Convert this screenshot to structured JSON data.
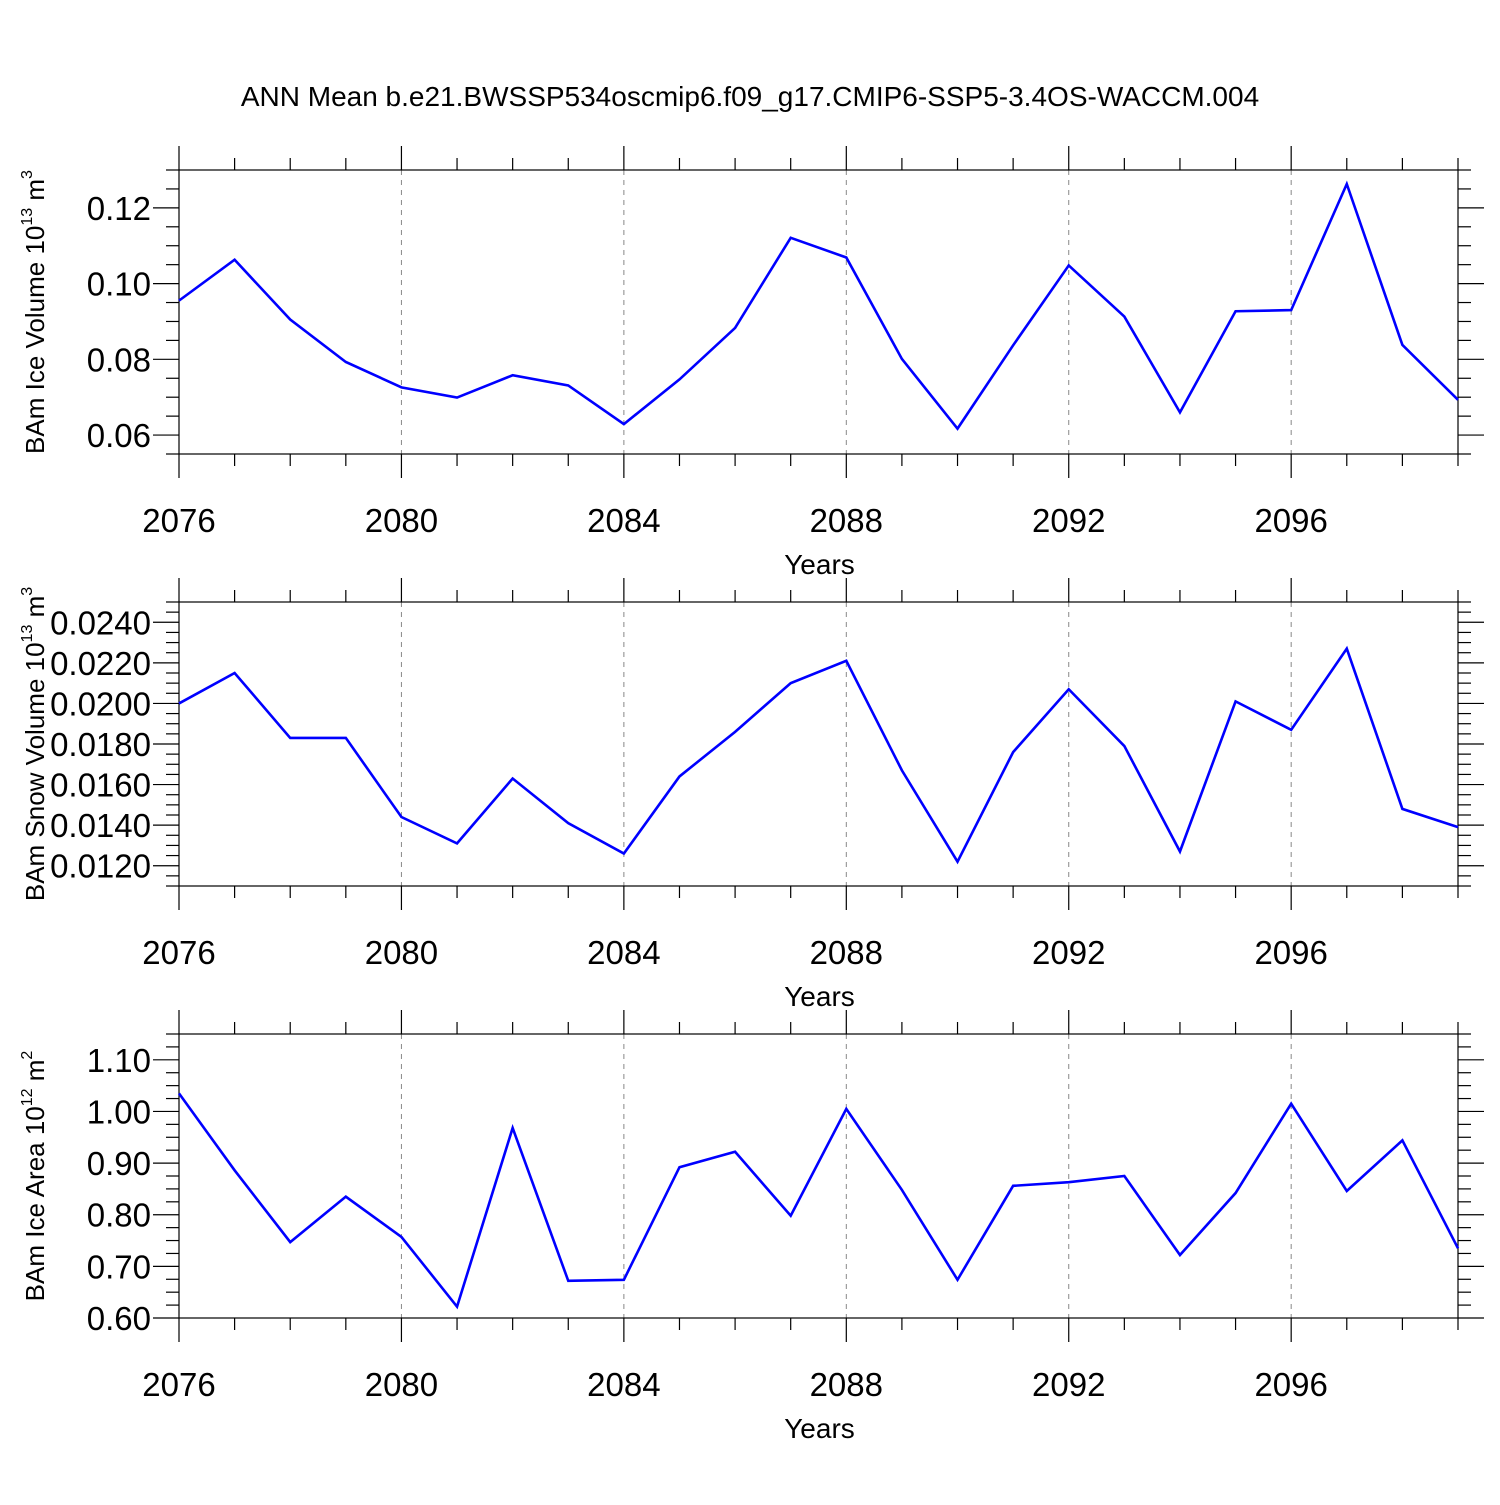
{
  "title": "ANN Mean b.e21.BWSSP534oscmip6.f09_g17.CMIP6-SSP5-3.4OS-WACCM.004",
  "colors": {
    "line": "#0000ff",
    "axis": "#000000",
    "grid": "#888888"
  },
  "chart_data": [
    {
      "type": "line",
      "ylabel_main": "BAm Ice Volume 10",
      "ylabel_exp": "13",
      "ylabel_unit": " m",
      "ylabel_unit_exp": "3",
      "xlabel": "Years",
      "xlim": [
        2076,
        2099
      ],
      "ylim": [
        0.055,
        0.13
      ],
      "xticks": [
        2076,
        2080,
        2084,
        2088,
        2092,
        2096
      ],
      "xtick_labels": [
        "2076",
        "2080",
        "2084",
        "2088",
        "2092",
        "2096"
      ],
      "yticks": [
        0.06,
        0.08,
        0.1,
        0.12
      ],
      "ytick_labels": [
        "0.06",
        "0.08",
        "0.10",
        "0.12"
      ],
      "x": [
        2076,
        2077,
        2078,
        2079,
        2080,
        2081,
        2082,
        2083,
        2084,
        2085,
        2086,
        2087,
        2088,
        2089,
        2090,
        2091,
        2092,
        2093,
        2094,
        2095,
        2096,
        2097,
        2098,
        2099
      ],
      "values": [
        0.0955,
        0.1063,
        0.0905,
        0.0793,
        0.0726,
        0.0699,
        0.0758,
        0.0731,
        0.0629,
        0.0747,
        0.0883,
        0.1121,
        0.1069,
        0.0801,
        0.0617,
        0.0837,
        0.1048,
        0.0913,
        0.066,
        0.0927,
        0.093,
        0.1263,
        0.0838,
        0.0693
      ]
    },
    {
      "type": "line",
      "ylabel_main": "BAm Snow Volume 10",
      "ylabel_exp": "13",
      "ylabel_unit": " m",
      "ylabel_unit_exp": "3",
      "xlabel": "Years",
      "xlim": [
        2076,
        2099
      ],
      "ylim": [
        0.011,
        0.025
      ],
      "xticks": [
        2076,
        2080,
        2084,
        2088,
        2092,
        2096
      ],
      "xtick_labels": [
        "2076",
        "2080",
        "2084",
        "2088",
        "2092",
        "2096"
      ],
      "yticks": [
        0.012,
        0.014,
        0.016,
        0.018,
        0.02,
        0.022,
        0.024
      ],
      "ytick_labels": [
        "0.0120",
        "0.0140",
        "0.0160",
        "0.0180",
        "0.0200",
        "0.0220",
        "0.0240"
      ],
      "x": [
        2076,
        2077,
        2078,
        2079,
        2080,
        2081,
        2082,
        2083,
        2084,
        2085,
        2086,
        2087,
        2088,
        2089,
        2090,
        2091,
        2092,
        2093,
        2094,
        2095,
        2096,
        2097,
        2098,
        2099
      ],
      "values": [
        0.02,
        0.0215,
        0.0183,
        0.0183,
        0.0144,
        0.0131,
        0.0163,
        0.0141,
        0.0126,
        0.0164,
        0.0186,
        0.021,
        0.0221,
        0.0167,
        0.0122,
        0.0176,
        0.0207,
        0.0179,
        0.0127,
        0.0201,
        0.0187,
        0.0227,
        0.0148,
        0.0139
      ]
    },
    {
      "type": "line",
      "ylabel_main": "BAm Ice Area 10",
      "ylabel_exp": "12",
      "ylabel_unit": " m",
      "ylabel_unit_exp": "2",
      "xlabel": "Years",
      "xlim": [
        2076,
        2099
      ],
      "ylim": [
        0.6,
        1.15
      ],
      "xticks": [
        2076,
        2080,
        2084,
        2088,
        2092,
        2096
      ],
      "xtick_labels": [
        "2076",
        "2080",
        "2084",
        "2088",
        "2092",
        "2096"
      ],
      "yticks": [
        0.6,
        0.7,
        0.8,
        0.9,
        1.0,
        1.1
      ],
      "ytick_labels": [
        "0.60",
        "0.70",
        "0.80",
        "0.90",
        "1.00",
        "1.10"
      ],
      "x": [
        2076,
        2077,
        2078,
        2079,
        2080,
        2081,
        2082,
        2083,
        2084,
        2085,
        2086,
        2087,
        2088,
        2089,
        2090,
        2091,
        2092,
        2093,
        2094,
        2095,
        2096,
        2097,
        2098,
        2099
      ],
      "values": [
        1.035,
        0.886,
        0.747,
        0.835,
        0.757,
        0.622,
        0.968,
        0.672,
        0.674,
        0.892,
        0.922,
        0.798,
        1.005,
        0.848,
        0.674,
        0.856,
        0.863,
        0.875,
        0.722,
        0.842,
        1.015,
        0.846,
        0.944,
        0.735
      ]
    }
  ]
}
